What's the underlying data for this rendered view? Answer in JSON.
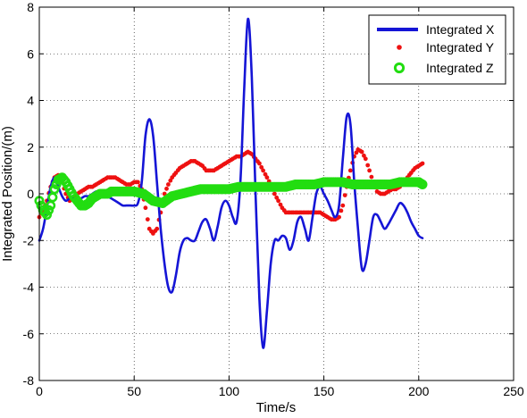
{
  "chart_data": {
    "type": "line",
    "title": "",
    "xlabel": "Time/s",
    "ylabel": "Integrated Position/(m)",
    "xlim": [
      0,
      250
    ],
    "ylim": [
      -8,
      8
    ],
    "xticks": [
      "0",
      "50",
      "100",
      "150",
      "200",
      "250"
    ],
    "yticks": [
      "8",
      "6",
      "4",
      "2",
      "0",
      "-2",
      "-4",
      "-6",
      "-8"
    ],
    "grid": true,
    "legend_position": "top-right",
    "series": [
      {
        "name": "Integrated X",
        "style": "solid-line",
        "color": "#1515d6",
        "x": [
          0,
          2,
          4,
          6,
          8,
          10,
          12,
          14,
          16,
          18,
          20,
          22,
          24,
          26,
          28,
          30,
          32,
          34,
          36,
          38,
          40,
          42,
          44,
          46,
          48,
          50,
          52,
          54,
          56,
          58,
          60,
          62,
          64,
          66,
          68,
          70,
          72,
          74,
          76,
          78,
          80,
          82,
          84,
          86,
          88,
          90,
          92,
          94,
          96,
          98,
          100,
          102,
          104,
          106,
          108,
          110,
          112,
          114,
          116,
          118,
          120,
          122,
          124,
          126,
          128,
          130,
          132,
          134,
          136,
          138,
          140,
          142,
          144,
          146,
          148,
          150,
          152,
          154,
          156,
          158,
          160,
          162,
          164,
          166,
          168,
          170,
          172,
          174,
          176,
          178,
          180,
          182,
          184,
          186,
          188,
          190,
          192,
          194,
          196,
          198,
          200,
          202
        ],
        "values": [
          -2.0,
          -1.5,
          -0.6,
          0.3,
          0.7,
          0.3,
          -0.1,
          -0.3,
          -0.2,
          -0.2,
          -0.3,
          -0.2,
          -0.1,
          -0.1,
          0.0,
          0.1,
          0.1,
          0.0,
          -0.1,
          -0.2,
          -0.3,
          -0.4,
          -0.5,
          -0.5,
          -0.5,
          -0.5,
          -0.4,
          0.5,
          2.5,
          3.2,
          2.5,
          0.5,
          -1.5,
          -3.0,
          -4.0,
          -4.2,
          -3.5,
          -2.5,
          -2.0,
          -1.9,
          -2.0,
          -2.0,
          -1.6,
          -1.2,
          -1.1,
          -1.5,
          -2.0,
          -1.4,
          -0.6,
          -0.3,
          -0.5,
          -1.0,
          -1.2,
          0.5,
          4.5,
          7.5,
          5.0,
          0.0,
          -4.5,
          -6.6,
          -5.0,
          -3.0,
          -2.0,
          -2.0,
          -1.8,
          -1.9,
          -2.4,
          -2.0,
          -1.2,
          -1.0,
          -1.5,
          -2.0,
          -1.0,
          0.0,
          0.3,
          0.0,
          -0.3,
          -0.7,
          -1.0,
          -0.5,
          1.5,
          3.3,
          3.0,
          0.5,
          -1.5,
          -3.2,
          -3.0,
          -2.0,
          -1.0,
          -0.9,
          -1.2,
          -1.5,
          -1.3,
          -1.0,
          -0.7,
          -0.4,
          -0.5,
          -0.8,
          -1.2,
          -1.5,
          -1.8,
          -1.9
        ]
      },
      {
        "name": "Integrated Y",
        "style": "dots",
        "color": "#ee1111",
        "x": [
          0,
          2,
          4,
          6,
          8,
          10,
          12,
          14,
          16,
          18,
          20,
          22,
          24,
          26,
          28,
          30,
          32,
          34,
          36,
          38,
          40,
          42,
          44,
          46,
          48,
          50,
          52,
          54,
          56,
          58,
          60,
          62,
          64,
          66,
          68,
          70,
          72,
          74,
          76,
          78,
          80,
          82,
          84,
          86,
          88,
          90,
          92,
          94,
          96,
          98,
          100,
          102,
          104,
          106,
          108,
          110,
          112,
          114,
          116,
          118,
          120,
          122,
          124,
          126,
          128,
          130,
          132,
          134,
          136,
          138,
          140,
          142,
          144,
          146,
          148,
          150,
          152,
          154,
          156,
          158,
          160,
          162,
          164,
          166,
          168,
          170,
          172,
          174,
          176,
          178,
          180,
          182,
          184,
          186,
          188,
          190,
          192,
          194,
          196,
          198,
          200,
          202
        ],
        "values": [
          -1.0,
          -0.7,
          -0.3,
          0.3,
          0.7,
          0.8,
          0.5,
          0.0,
          -0.3,
          -0.2,
          0.0,
          0.1,
          0.2,
          0.3,
          0.3,
          0.4,
          0.5,
          0.6,
          0.7,
          0.7,
          0.7,
          0.6,
          0.5,
          0.4,
          0.4,
          0.5,
          0.5,
          0.2,
          -0.6,
          -1.5,
          -1.7,
          -1.5,
          -0.8,
          0.0,
          0.4,
          0.7,
          0.9,
          1.1,
          1.2,
          1.3,
          1.4,
          1.4,
          1.3,
          1.2,
          1.0,
          1.0,
          1.0,
          1.1,
          1.2,
          1.3,
          1.4,
          1.5,
          1.6,
          1.6,
          1.7,
          1.8,
          1.7,
          1.5,
          1.3,
          1.0,
          0.7,
          0.4,
          0.0,
          -0.3,
          -0.6,
          -0.8,
          -0.8,
          -0.8,
          -0.8,
          -0.8,
          -0.8,
          -0.8,
          -0.8,
          -0.8,
          -0.8,
          -0.9,
          -1.0,
          -1.1,
          -1.1,
          -1.0,
          -0.5,
          0.3,
          1.0,
          1.6,
          1.9,
          1.8,
          1.5,
          1.0,
          0.5,
          0.1,
          0.0,
          0.0,
          0.1,
          0.2,
          0.2,
          0.3,
          0.5,
          0.7,
          0.9,
          1.1,
          1.2,
          1.3
        ]
      },
      {
        "name": "Integrated Z",
        "style": "open-circles",
        "color": "#22dd11",
        "x": [
          0,
          2,
          4,
          6,
          8,
          10,
          12,
          14,
          16,
          18,
          20,
          22,
          24,
          26,
          28,
          30,
          32,
          34,
          36,
          38,
          40,
          45,
          50,
          55,
          60,
          65,
          70,
          75,
          80,
          85,
          90,
          95,
          100,
          105,
          110,
          115,
          120,
          125,
          130,
          135,
          140,
          145,
          150,
          155,
          160,
          165,
          170,
          175,
          180,
          185,
          190,
          195,
          200,
          202
        ],
        "values": [
          -0.3,
          -0.7,
          -0.9,
          -0.5,
          0.2,
          0.6,
          0.7,
          0.5,
          0.2,
          -0.1,
          -0.3,
          -0.5,
          -0.5,
          -0.4,
          -0.2,
          -0.1,
          0.0,
          0.0,
          0.0,
          0.1,
          0.1,
          0.1,
          0.1,
          0.0,
          -0.3,
          -0.4,
          -0.1,
          0.0,
          0.1,
          0.2,
          0.2,
          0.2,
          0.2,
          0.3,
          0.3,
          0.3,
          0.3,
          0.3,
          0.3,
          0.4,
          0.4,
          0.4,
          0.5,
          0.5,
          0.5,
          0.4,
          0.4,
          0.4,
          0.4,
          0.4,
          0.5,
          0.5,
          0.5,
          0.4
        ]
      }
    ]
  }
}
